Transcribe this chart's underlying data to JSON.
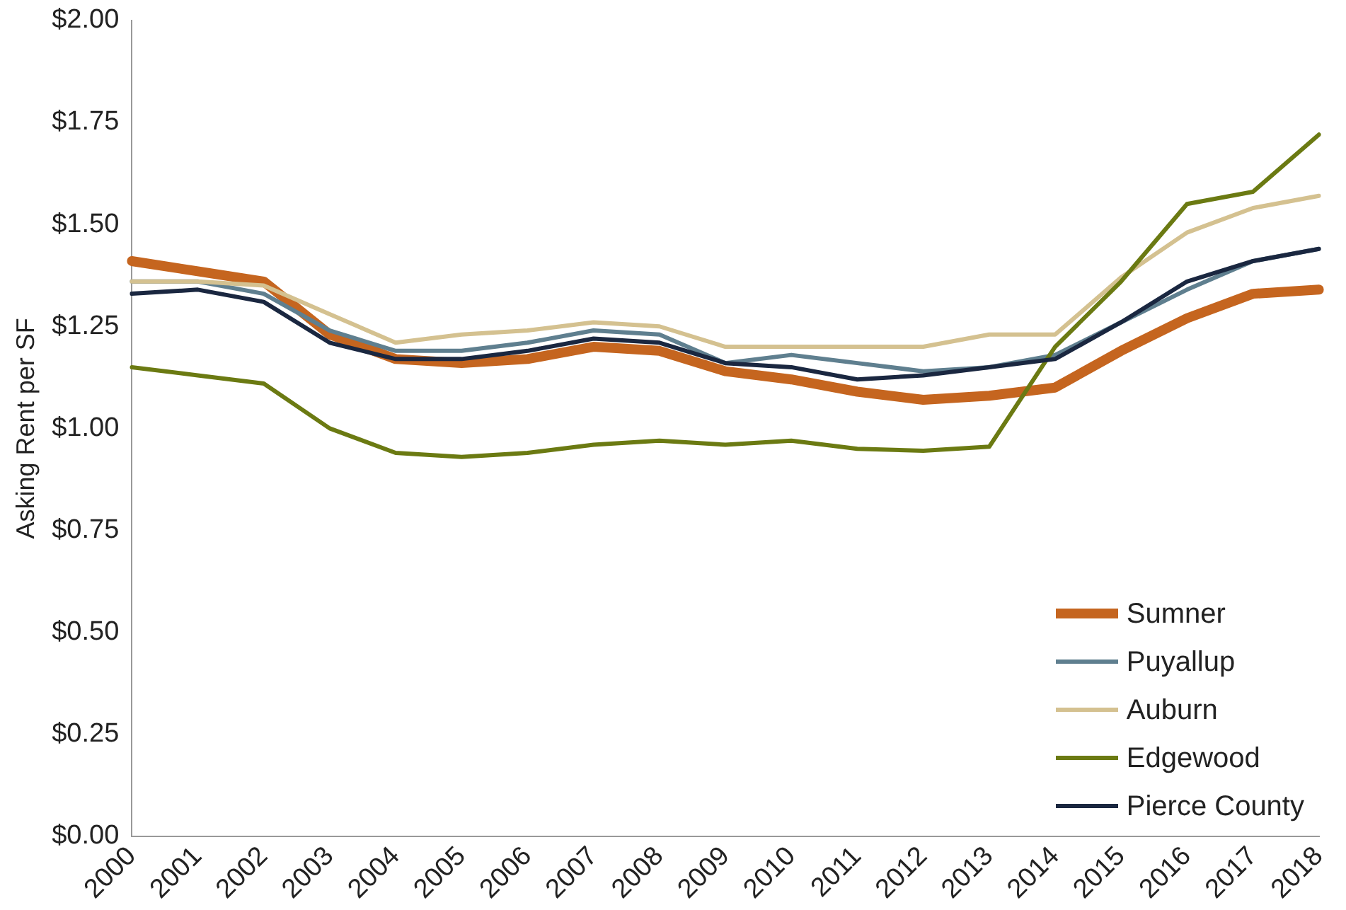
{
  "chart_data": {
    "type": "line",
    "ylabel": "Asking Rent per SF",
    "categories": [
      "2000",
      "2001",
      "2002",
      "2003",
      "2004",
      "2005",
      "2006",
      "2007",
      "2008",
      "2009",
      "2010",
      "2011",
      "2012",
      "2013",
      "2014",
      "2015",
      "2016",
      "2017",
      "2018"
    ],
    "series": [
      {
        "name": "Sumner",
        "color": "#c5651f",
        "values": [
          1.41,
          1.385,
          1.36,
          1.23,
          1.17,
          1.16,
          1.17,
          1.2,
          1.19,
          1.14,
          1.12,
          1.09,
          1.07,
          1.08,
          1.1,
          1.19,
          1.27,
          1.33,
          1.34
        ]
      },
      {
        "name": "Puyallup",
        "color": "#5f7f8f",
        "values": [
          1.36,
          1.36,
          1.33,
          1.24,
          1.19,
          1.19,
          1.21,
          1.24,
          1.23,
          1.16,
          1.18,
          1.16,
          1.14,
          1.15,
          1.18,
          1.26,
          1.34,
          1.41,
          1.44
        ]
      },
      {
        "name": "Auburn",
        "color": "#d4c190",
        "values": [
          1.36,
          1.36,
          1.35,
          1.28,
          1.21,
          1.23,
          1.24,
          1.26,
          1.25,
          1.2,
          1.2,
          1.2,
          1.2,
          1.23,
          1.23,
          1.37,
          1.48,
          1.54,
          1.57
        ]
      },
      {
        "name": "Edgewood",
        "color": "#6b7a12",
        "values": [
          1.15,
          1.13,
          1.11,
          1.0,
          0.94,
          0.93,
          0.94,
          0.96,
          0.97,
          0.96,
          0.97,
          0.95,
          0.945,
          0.955,
          1.2,
          1.36,
          1.55,
          1.58,
          1.72
        ]
      },
      {
        "name": "Pierce County",
        "color": "#1a2740",
        "values": [
          1.33,
          1.34,
          1.31,
          1.21,
          1.17,
          1.17,
          1.19,
          1.22,
          1.21,
          1.16,
          1.15,
          1.12,
          1.13,
          1.15,
          1.17,
          1.26,
          1.36,
          1.41,
          1.44
        ]
      }
    ],
    "ylim": [
      0,
      2
    ],
    "yticks": [
      {
        "value": 0,
        "label": "$0.00"
      },
      {
        "value": 0.25,
        "label": "$0.25"
      },
      {
        "value": 0.5,
        "label": "$0.50"
      },
      {
        "value": 0.75,
        "label": "$0.75"
      },
      {
        "value": 1,
        "label": "$1.00"
      },
      {
        "value": 1.25,
        "label": "$1.25"
      },
      {
        "value": 1.5,
        "label": "$1.50"
      },
      {
        "value": 1.75,
        "label": "$1.75"
      },
      {
        "value": 2,
        "label": "$2.00"
      }
    ],
    "grid": false,
    "legend": "bottom right",
    "marker": "none",
    "line_style": "solid"
  }
}
